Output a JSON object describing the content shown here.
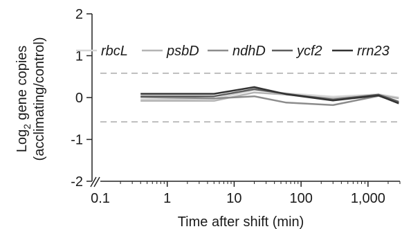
{
  "chart_data": {
    "type": "line",
    "title": "",
    "xlabel": "Time after shift (min)",
    "ylabel": {
      "line1_pre": "Log",
      "line1_sub": "2",
      "line1_post": " gene copies",
      "line2": "(acclimating/control)"
    },
    "x_scale": "log",
    "x_ticks": [
      {
        "value": 0.1,
        "label": "0.1"
      },
      {
        "value": 1,
        "label": "1"
      },
      {
        "value": 10,
        "label": "10"
      },
      {
        "value": 100,
        "label": "100"
      },
      {
        "value": 1000,
        "label": "1,000"
      }
    ],
    "y_ticks": [
      {
        "value": 2,
        "label": "2"
      },
      {
        "value": 1,
        "label": "1"
      },
      {
        "value": 0,
        "label": "0"
      },
      {
        "value": -1,
        "label": "-1"
      },
      {
        "value": -2,
        "label": "-2"
      }
    ],
    "xlim": [
      0.1,
      3000
    ],
    "ylim": [
      -2,
      2
    ],
    "axis_break": true,
    "grid": false,
    "legend_position": "top-right",
    "reference_lines": [
      {
        "y": 0.58,
        "style": "dashed",
        "color": "#aaaaaa"
      },
      {
        "y": -0.58,
        "style": "dashed",
        "color": "#aaaaaa"
      }
    ],
    "x": [
      0.4,
      5,
      20,
      60,
      300,
      1440,
      2880
    ],
    "series": [
      {
        "name": "rbcL",
        "color": "#d6d6d6",
        "values": [
          -0.05,
          -0.03,
          0.18,
          0.1,
          0.02,
          0.08,
          0.0
        ]
      },
      {
        "name": "psbD",
        "color": "#b4b4b4",
        "values": [
          -0.08,
          -0.08,
          0.12,
          0.07,
          -0.02,
          0.06,
          -0.02
        ]
      },
      {
        "name": "ndhD",
        "color": "#8c8c8c",
        "values": [
          0.01,
          -0.02,
          0.03,
          -0.12,
          -0.18,
          0.04,
          -0.12
        ]
      },
      {
        "name": "ycf2",
        "color": "#5e5e5e",
        "values": [
          0.03,
          0.03,
          0.2,
          0.09,
          -0.05,
          0.07,
          -0.1
        ]
      },
      {
        "name": "rrn23",
        "color": "#333333",
        "values": [
          0.09,
          0.09,
          0.25,
          0.08,
          -0.07,
          0.05,
          -0.14
        ]
      }
    ]
  }
}
